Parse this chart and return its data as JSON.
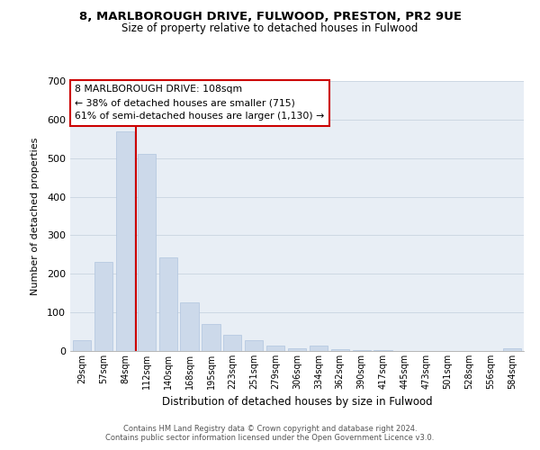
{
  "title": "8, MARLBOROUGH DRIVE, FULWOOD, PRESTON, PR2 9UE",
  "subtitle": "Size of property relative to detached houses in Fulwood",
  "xlabel": "Distribution of detached houses by size in Fulwood",
  "ylabel": "Number of detached properties",
  "bar_labels": [
    "29sqm",
    "57sqm",
    "84sqm",
    "112sqm",
    "140sqm",
    "168sqm",
    "195sqm",
    "223sqm",
    "251sqm",
    "279sqm",
    "306sqm",
    "334sqm",
    "362sqm",
    "390sqm",
    "417sqm",
    "445sqm",
    "473sqm",
    "501sqm",
    "528sqm",
    "556sqm",
    "584sqm"
  ],
  "bar_values": [
    28,
    232,
    570,
    510,
    242,
    127,
    70,
    43,
    27,
    14,
    8,
    15,
    4,
    2,
    2,
    1,
    1,
    0,
    0,
    0,
    7
  ],
  "bar_color": "#ccd9ea",
  "bar_edge_color": "#b0c4de",
  "ylim": [
    0,
    700
  ],
  "yticks": [
    0,
    100,
    200,
    300,
    400,
    500,
    600,
    700
  ],
  "line_x_index": 2.5,
  "annotation_line1": "8 MARLBOROUGH DRIVE: 108sqm",
  "annotation_line2": "← 38% of detached houses are smaller (715)",
  "annotation_line3": "61% of semi-detached houses are larger (1,130) →",
  "annotation_box_color": "#ffffff",
  "annotation_box_edge": "#cc0000",
  "line_color": "#cc0000",
  "footer1": "Contains HM Land Registry data © Crown copyright and database right 2024.",
  "footer2": "Contains public sector information licensed under the Open Government Licence v3.0.",
  "bg_color": "#e8eef5"
}
